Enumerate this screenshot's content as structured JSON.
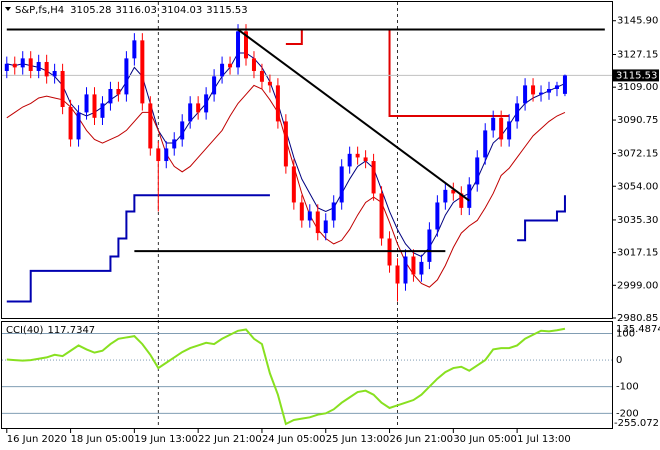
{
  "chart_data": {
    "type": "candlestick",
    "symbol": "S&P,fs,H4",
    "open": [
      3118,
      3122,
      3120,
      3125,
      3118,
      3123,
      3115,
      3118,
      3098,
      3080,
      3095,
      3105,
      3092,
      3100,
      3108,
      3105,
      3125,
      3135,
      3100,
      3075,
      3068,
      3075,
      3080,
      3090,
      3100,
      3095,
      3105,
      3115,
      3122,
      3120,
      3140,
      3125,
      3118,
      3112,
      3110,
      3090,
      3065,
      3045,
      3035,
      3040,
      3028,
      3035,
      3045,
      3065,
      3072,
      3070,
      3068,
      3050,
      3025,
      3010,
      3000,
      3015,
      3005,
      3012,
      3030,
      3045,
      3052,
      3050,
      3042,
      3055,
      3070,
      3085,
      3092,
      3080,
      3090,
      3100,
      3110,
      3105,
      3106,
      3108,
      3105.28
    ],
    "high": [
      3126,
      3126,
      3129,
      3129,
      3127,
      3127,
      3122,
      3122,
      3102,
      3099,
      3109,
      3109,
      3104,
      3112,
      3112,
      3129,
      3139,
      3139,
      3104,
      3079,
      3079,
      3084,
      3094,
      3104,
      3104,
      3109,
      3119,
      3126,
      3126,
      3144,
      3144,
      3129,
      3122,
      3116,
      3114,
      3094,
      3069,
      3049,
      3044,
      3044,
      3039,
      3049,
      3069,
      3076,
      3076,
      3074,
      3072,
      3054,
      3029,
      3014,
      3019,
      3019,
      3016,
      3034,
      3049,
      3056,
      3056,
      3054,
      3059,
      3074,
      3089,
      3096,
      3096,
      3094,
      3104,
      3114,
      3114,
      3110,
      3112,
      3112,
      3116.03
    ],
    "low": [
      3114,
      3116,
      3116,
      3114,
      3114,
      3111,
      3111,
      3094,
      3076,
      3076,
      3091,
      3088,
      3088,
      3096,
      3101,
      3101,
      3121,
      3096,
      3071,
      3040,
      3064,
      3071,
      3076,
      3086,
      3091,
      3091,
      3101,
      3111,
      3116,
      3116,
      3121,
      3114,
      3108,
      3106,
      3086,
      3061,
      3041,
      3031,
      3031,
      3024,
      3024,
      3031,
      3041,
      3061,
      3066,
      3064,
      3046,
      3021,
      3006,
      2990,
      2996,
      3001,
      3001,
      3008,
      3026,
      3041,
      3046,
      3038,
      3038,
      3051,
      3066,
      3081,
      3076,
      3076,
      3086,
      3096,
      3101,
      3101,
      3102,
      3104,
      3104.03
    ],
    "close": [
      3122,
      3120,
      3125,
      3118,
      3123,
      3115,
      3118,
      3098,
      3080,
      3095,
      3105,
      3092,
      3100,
      3108,
      3105,
      3125,
      3135,
      3100,
      3075,
      3068,
      3075,
      3080,
      3090,
      3100,
      3095,
      3105,
      3115,
      3122,
      3120,
      3140,
      3125,
      3118,
      3112,
      3110,
      3090,
      3065,
      3045,
      3035,
      3040,
      3028,
      3035,
      3045,
      3065,
      3072,
      3070,
      3068,
      3050,
      3025,
      3010,
      3000,
      3015,
      3005,
      3012,
      3030,
      3045,
      3052,
      3050,
      3042,
      3055,
      3070,
      3085,
      3092,
      3080,
      3090,
      3100,
      3110,
      3105,
      3106,
      3108,
      3110,
      3115.53
    ],
    "up_color": "#0000ff",
    "down_color": "#ff0000",
    "xlim": [
      -0.6,
      75.9
    ],
    "xticks": [
      {
        "value": 0,
        "label": "16 Jun 2020"
      },
      {
        "value": 8,
        "label": "18 Jun 05:00"
      },
      {
        "value": 16,
        "label": "19 Jun 13:00"
      },
      {
        "value": 24,
        "label": "22 Jun 21:00"
      },
      {
        "value": 32,
        "label": "24 Jun 05:00"
      },
      {
        "value": 40,
        "label": "25 Jun 13:00"
      },
      {
        "value": 48,
        "label": "26 Jun 21:00"
      },
      {
        "value": 56,
        "label": "30 Jun 05:00"
      },
      {
        "value": 64,
        "label": "1 Jul 13:00"
      }
    ],
    "separators": [
      19,
      49
    ],
    "ylim": [
      2980.85,
      3156.3
    ],
    "yticks": [
      {
        "value": 3145.9,
        "label": "3145.90"
      },
      {
        "value": 3127.15,
        "label": "3127.15"
      },
      {
        "value": 3109,
        "label": "3109.00"
      },
      {
        "value": 3090.75,
        "label": "3090.75"
      },
      {
        "value": 3072.15,
        "label": "3072.15"
      },
      {
        "value": 3054,
        "label": "3054.00"
      },
      {
        "value": 3035.3,
        "label": "3035.30"
      },
      {
        "value": 3017.15,
        "label": "3017.15"
      },
      {
        "value": 2999,
        "label": "2999.00"
      },
      {
        "value": 2980.85,
        "label": "2980.85"
      }
    ],
    "series": [
      {
        "color": "#000080",
        "values": [
          3122,
          3121,
          3122,
          3121,
          3120,
          3118,
          3115,
          3110,
          3100,
          3095,
          3093,
          3095,
          3098,
          3102,
          3105,
          3112,
          3120,
          3115,
          3100,
          3085,
          3078,
          3078,
          3083,
          3090,
          3095,
          3100,
          3108,
          3115,
          3120,
          3128,
          3128,
          3125,
          3120,
          3112,
          3100,
          3085,
          3070,
          3058,
          3050,
          3042,
          3040,
          3042,
          3050,
          3058,
          3065,
          3068,
          3064,
          3052,
          3040,
          3030,
          3022,
          3017,
          3015,
          3020,
          3028,
          3038,
          3045,
          3048,
          3050,
          3058,
          3068,
          3078,
          3082,
          3088,
          3095,
          3100,
          3103,
          3105,
          3107,
          3109,
          3111
        ]
      },
      {
        "color": "#c00000",
        "values": [
          3092,
          3095,
          3098,
          3100,
          3103,
          3104,
          3103,
          3102,
          3098,
          3092,
          3085,
          3080,
          3078,
          3080,
          3082,
          3085,
          3090,
          3095,
          3095,
          3085,
          3072,
          3065,
          3062,
          3065,
          3070,
          3075,
          3080,
          3085,
          3093,
          3100,
          3105,
          3110,
          3108,
          3102,
          3095,
          3080,
          3065,
          3050,
          3038,
          3030,
          3025,
          3022,
          3024,
          3030,
          3038,
          3045,
          3048,
          3045,
          3034,
          3022,
          3012,
          3005,
          3000,
          2998,
          3002,
          3010,
          3020,
          3028,
          3032,
          3035,
          3042,
          3050,
          3060,
          3064,
          3070,
          3076,
          3082,
          3086,
          3090,
          3093,
          3095
        ]
      },
      {
        "color": "#e00000",
        "step": true,
        "values": [
          null,
          null,
          null,
          null,
          null,
          null,
          null,
          null,
          null,
          null,
          null,
          null,
          null,
          null,
          null,
          null,
          null,
          null,
          null,
          null,
          null,
          null,
          null,
          null,
          null,
          null,
          null,
          null,
          null,
          null,
          null,
          null,
          null,
          null,
          null,
          3133,
          3133,
          3141,
          3141,
          3141,
          3141,
          3141,
          3141,
          3141,
          3141,
          3141,
          3141,
          3141,
          3093,
          3093,
          3093,
          3093,
          3093,
          3093,
          3093,
          3093,
          3093,
          3093,
          3093,
          3093,
          3093,
          3093,
          3093,
          3093,
          null,
          null,
          null,
          null,
          null,
          null,
          null
        ]
      },
      {
        "color": "#0000b0",
        "step": true,
        "values": [
          2990,
          2990,
          2990,
          3007,
          3007,
          3007,
          3007,
          3007,
          3007,
          3007,
          3007,
          3007,
          3007,
          3015,
          3025,
          3040,
          3049,
          3049,
          3049,
          3049,
          3049,
          3049,
          3049,
          3049,
          3049,
          3049,
          3049,
          3049,
          3049,
          3049,
          3049,
          3049,
          3049,
          3049,
          null,
          null,
          null,
          null,
          null,
          null,
          null,
          null,
          null,
          null,
          null,
          null,
          null,
          null,
          null,
          null,
          null,
          null,
          null,
          null,
          null,
          null,
          null,
          null,
          null,
          null,
          null,
          null,
          null,
          null,
          3024,
          3035,
          3035,
          3035,
          3035,
          3040,
          3049
        ]
      }
    ],
    "lines": [
      {
        "x": [
          0,
          75
        ],
        "y": [
          3141,
          3141
        ]
      },
      {
        "x": [
          29,
          58
        ],
        "y": [
          3141,
          3046
        ]
      },
      {
        "x": [
          16,
          55
        ],
        "y": [
          3018,
          3018
        ]
      }
    ],
    "cci": {
      "name": "CCI(40)",
      "color": "#88e020",
      "values": [
        2,
        0,
        -2,
        0,
        5,
        10,
        20,
        15,
        35,
        55,
        40,
        28,
        35,
        60,
        80,
        85,
        90,
        60,
        20,
        -30,
        -10,
        10,
        30,
        45,
        55,
        65,
        60,
        80,
        95,
        110,
        115,
        80,
        60,
        -50,
        -130,
        -240,
        -225,
        -220,
        -215,
        -205,
        -200,
        -185,
        -160,
        -140,
        -120,
        -115,
        -130,
        -160,
        -180,
        -170,
        -160,
        -150,
        -130,
        -100,
        -70,
        -45,
        -30,
        -25,
        -40,
        -20,
        0,
        40,
        45,
        45,
        55,
        80,
        95,
        110,
        108,
        112,
        117.7347
      ],
      "ylim": [
        -255.0721,
        135.4874
      ],
      "yticks": [
        100,
        0,
        -100,
        -200
      ]
    }
  }
}
